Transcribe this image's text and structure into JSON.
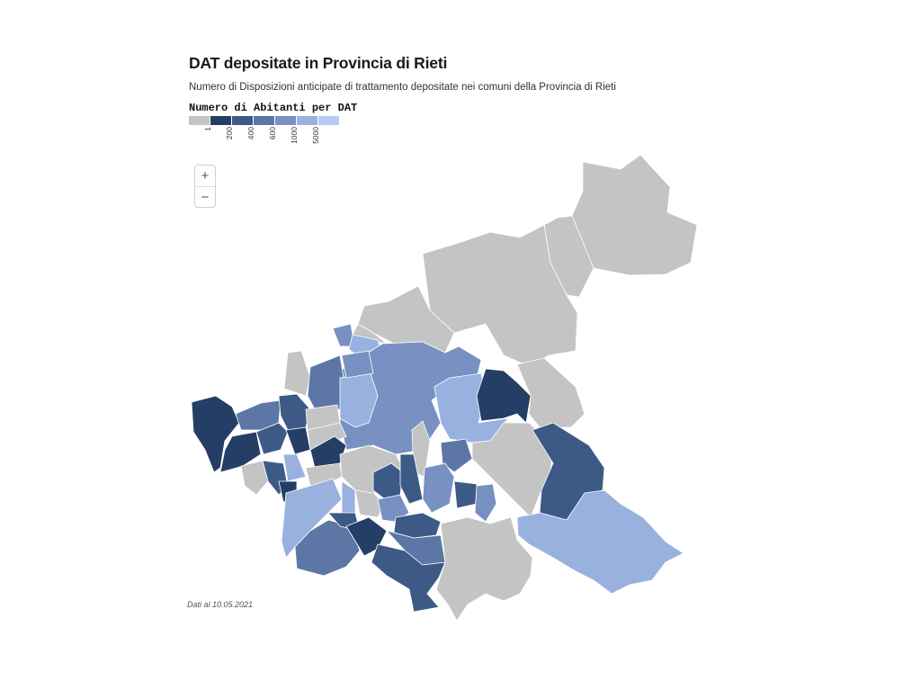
{
  "header": {
    "title": "DAT depositate in Provincia di Rieti",
    "subtitle": "Numero di Disposizioni anticipate di trattamento depositate nei comuni della Provincia di Rieti"
  },
  "legend": {
    "title": "Numero di Abitanti per DAT",
    "bins": [
      {
        "color": "#c4c4c4",
        "label": "1"
      },
      {
        "color": "#243e66",
        "label": "200"
      },
      {
        "color": "#3d5a86",
        "label": "400"
      },
      {
        "color": "#5c77a5",
        "label": "600"
      },
      {
        "color": "#7891c2",
        "label": "1000"
      },
      {
        "color": "#99b1df",
        "label": "5000"
      },
      {
        "color": "#b7cbf2",
        "label": ""
      }
    ]
  },
  "zoom": {
    "in_label": "+",
    "out_label": "−"
  },
  "footnote": "Dati al 10.05.2021"
}
